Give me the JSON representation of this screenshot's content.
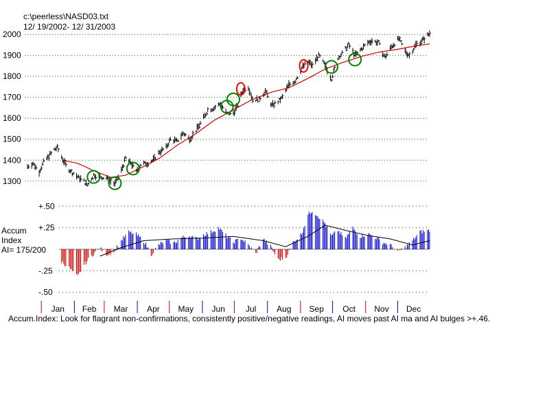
{
  "header": {
    "file_path": "c:\\peerless\\NASD03.txt",
    "date_range": " 12/ 19/2002- 12/ 31/2003"
  },
  "chart_data": [
    {
      "type": "bar",
      "subtype": "ohlc-price-with-moving-average",
      "title": "",
      "ylim": [
        1260,
        2020
      ],
      "y_ticks": [
        "2000",
        "1900",
        "1800",
        "1700",
        "1600",
        "1500",
        "1400",
        "1300"
      ],
      "y_tick_values": [
        2000,
        1900,
        1800,
        1700,
        1600,
        1500,
        1400,
        1300
      ],
      "grid": "horizontal dotted",
      "colors": {
        "bars": "#000000",
        "moving_average": "#cc0000",
        "buy_marker": "#008000",
        "sell_marker": "#ff0000"
      },
      "price_series": [
        {
          "date": "2002-12-19",
          "close": 1370
        },
        {
          "date": "2002-12-24",
          "close": 1385
        },
        {
          "date": "2002-12-30",
          "close": 1345
        },
        {
          "date": "2003-01-03",
          "close": 1390
        },
        {
          "date": "2003-01-08",
          "close": 1420
        },
        {
          "date": "2003-01-13",
          "close": 1450
        },
        {
          "date": "2003-01-16",
          "close": 1460
        },
        {
          "date": "2003-01-21",
          "close": 1405
        },
        {
          "date": "2003-01-24",
          "close": 1375
        },
        {
          "date": "2003-01-29",
          "close": 1345
        },
        {
          "date": "2003-02-04",
          "close": 1320
        },
        {
          "date": "2003-02-10",
          "close": 1300
        },
        {
          "date": "2003-02-13",
          "close": 1280
        },
        {
          "date": "2003-02-19",
          "close": 1330
        },
        {
          "date": "2003-02-25",
          "close": 1320
        },
        {
          "date": "2003-03-03",
          "close": 1315
        },
        {
          "date": "2003-03-07",
          "close": 1300
        },
        {
          "date": "2003-03-11",
          "close": 1285
        },
        {
          "date": "2003-03-17",
          "close": 1350
        },
        {
          "date": "2003-03-21",
          "close": 1410
        },
        {
          "date": "2003-03-26",
          "close": 1385
        },
        {
          "date": "2003-03-31",
          "close": 1345
        },
        {
          "date": "2003-04-04",
          "close": 1380
        },
        {
          "date": "2003-04-10",
          "close": 1385
        },
        {
          "date": "2003-04-16",
          "close": 1400
        },
        {
          "date": "2003-04-22",
          "close": 1440
        },
        {
          "date": "2003-04-28",
          "close": 1460
        },
        {
          "date": "2003-05-02",
          "close": 1500
        },
        {
          "date": "2003-05-08",
          "close": 1490
        },
        {
          "date": "2003-05-14",
          "close": 1530
        },
        {
          "date": "2003-05-20",
          "close": 1500
        },
        {
          "date": "2003-05-27",
          "close": 1550
        },
        {
          "date": "2003-06-02",
          "close": 1600
        },
        {
          "date": "2003-06-06",
          "close": 1640
        },
        {
          "date": "2003-06-12",
          "close": 1650
        },
        {
          "date": "2003-06-18",
          "close": 1670
        },
        {
          "date": "2003-06-24",
          "close": 1620
        },
        {
          "date": "2003-06-30",
          "close": 1625
        },
        {
          "date": "2003-07-03",
          "close": 1650
        },
        {
          "date": "2003-07-09",
          "close": 1735
        },
        {
          "date": "2003-07-14",
          "close": 1750
        },
        {
          "date": "2003-07-18",
          "close": 1690
        },
        {
          "date": "2003-07-24",
          "close": 1690
        },
        {
          "date": "2003-07-30",
          "close": 1730
        },
        {
          "date": "2003-08-05",
          "close": 1660
        },
        {
          "date": "2003-08-11",
          "close": 1680
        },
        {
          "date": "2003-08-15",
          "close": 1700
        },
        {
          "date": "2003-08-21",
          "close": 1760
        },
        {
          "date": "2003-08-27",
          "close": 1780
        },
        {
          "date": "2003-09-02",
          "close": 1840
        },
        {
          "date": "2003-09-08",
          "close": 1870
        },
        {
          "date": "2003-09-12",
          "close": 1850
        },
        {
          "date": "2003-09-18",
          "close": 1900
        },
        {
          "date": "2003-09-24",
          "close": 1850
        },
        {
          "date": "2003-09-30",
          "close": 1790
        },
        {
          "date": "2003-10-06",
          "close": 1890
        },
        {
          "date": "2003-10-10",
          "close": 1910
        },
        {
          "date": "2003-10-16",
          "close": 1950
        },
        {
          "date": "2003-10-22",
          "close": 1900
        },
        {
          "date": "2003-10-28",
          "close": 1930
        },
        {
          "date": "2003-11-03",
          "close": 1960
        },
        {
          "date": "2003-11-07",
          "close": 1970
        },
        {
          "date": "2003-11-13",
          "close": 1960
        },
        {
          "date": "2003-11-19",
          "close": 1890
        },
        {
          "date": "2003-11-25",
          "close": 1940
        },
        {
          "date": "2003-12-02",
          "close": 1980
        },
        {
          "date": "2003-12-08",
          "close": 1920
        },
        {
          "date": "2003-12-12",
          "close": 1900
        },
        {
          "date": "2003-12-18",
          "close": 1950
        },
        {
          "date": "2003-12-24",
          "close": 1970
        },
        {
          "date": "2003-12-31",
          "close": 2005
        }
      ],
      "moving_average_points": [
        {
          "date": "2003-01-21",
          "value": 1400
        },
        {
          "date": "2003-02-04",
          "value": 1385
        },
        {
          "date": "2003-02-19",
          "value": 1350
        },
        {
          "date": "2003-03-07",
          "value": 1318
        },
        {
          "date": "2003-03-21",
          "value": 1328
        },
        {
          "date": "2003-04-04",
          "value": 1362
        },
        {
          "date": "2003-04-22",
          "value": 1410
        },
        {
          "date": "2003-05-08",
          "value": 1470
        },
        {
          "date": "2003-05-27",
          "value": 1530
        },
        {
          "date": "2003-06-12",
          "value": 1590
        },
        {
          "date": "2003-06-30",
          "value": 1640
        },
        {
          "date": "2003-07-18",
          "value": 1690
        },
        {
          "date": "2003-08-05",
          "value": 1725
        },
        {
          "date": "2003-08-21",
          "value": 1745
        },
        {
          "date": "2003-09-08",
          "value": 1790
        },
        {
          "date": "2003-09-24",
          "value": 1835
        },
        {
          "date": "2003-10-10",
          "value": 1865
        },
        {
          "date": "2003-10-28",
          "value": 1895
        },
        {
          "date": "2003-11-13",
          "value": 1915
        },
        {
          "date": "2003-12-02",
          "value": 1930
        },
        {
          "date": "2003-12-18",
          "value": 1945
        },
        {
          "date": "2003-12-31",
          "value": 1955
        }
      ],
      "signal_markers": [
        {
          "date": "2003-02-19",
          "price": 1320,
          "kind": "buy"
        },
        {
          "date": "2003-03-11",
          "price": 1290,
          "kind": "buy"
        },
        {
          "date": "2003-03-28",
          "price": 1360,
          "kind": "buy"
        },
        {
          "date": "2003-06-24",
          "price": 1655,
          "kind": "buy"
        },
        {
          "date": "2003-06-30",
          "price": 1690,
          "kind": "buy"
        },
        {
          "date": "2003-07-07",
          "price": 1740,
          "kind": "sell"
        },
        {
          "date": "2003-09-04",
          "price": 1850,
          "kind": "sell"
        },
        {
          "date": "2003-09-30",
          "price": 1845,
          "kind": "buy"
        },
        {
          "date": "2003-10-22",
          "price": 1880,
          "kind": "buy"
        }
      ]
    },
    {
      "type": "bar",
      "subtype": "indicator-histogram",
      "title": "",
      "ylabel_lines": [
        "Accum",
        "Index",
        "AI= 175/200"
      ],
      "ylim": [
        -0.55,
        0.55
      ],
      "y_ticks": [
        "+.50",
        "+.25",
        "-.25",
        "-.50"
      ],
      "y_tick_values": [
        0.5,
        0.25,
        -0.25,
        -0.5
      ],
      "grid": "horizontal dotted",
      "colors": {
        "positive": "#0000cc",
        "negative": "#cc0000",
        "ai_ma": "#000000"
      },
      "ai_series": [
        {
          "date": "2002-12-19",
          "value": -0.05
        },
        {
          "date": "2002-12-30",
          "value": -0.12
        },
        {
          "date": "2003-01-10",
          "value": -0.1
        },
        {
          "date": "2003-01-21",
          "value": -0.15
        },
        {
          "date": "2003-01-28",
          "value": -0.23
        },
        {
          "date": "2003-02-04",
          "value": -0.32
        },
        {
          "date": "2003-02-10",
          "value": -0.18
        },
        {
          "date": "2003-02-19",
          "value": -0.05
        },
        {
          "date": "2003-02-25",
          "value": 0.01
        },
        {
          "date": "2003-03-03",
          "value": -0.06
        },
        {
          "date": "2003-03-10",
          "value": -0.03
        },
        {
          "date": "2003-03-17",
          "value": 0.1
        },
        {
          "date": "2003-03-24",
          "value": 0.2
        },
        {
          "date": "2003-03-31",
          "value": 0.17
        },
        {
          "date": "2003-04-07",
          "value": 0.1
        },
        {
          "date": "2003-04-14",
          "value": -0.06
        },
        {
          "date": "2003-04-21",
          "value": 0.05
        },
        {
          "date": "2003-04-28",
          "value": 0.1
        },
        {
          "date": "2003-05-05",
          "value": 0.07
        },
        {
          "date": "2003-05-12",
          "value": 0.13
        },
        {
          "date": "2003-05-19",
          "value": 0.16
        },
        {
          "date": "2003-05-27",
          "value": 0.12
        },
        {
          "date": "2003-06-02",
          "value": 0.17
        },
        {
          "date": "2003-06-09",
          "value": 0.2
        },
        {
          "date": "2003-06-16",
          "value": 0.25
        },
        {
          "date": "2003-06-23",
          "value": 0.16
        },
        {
          "date": "2003-06-30",
          "value": 0.08
        },
        {
          "date": "2003-07-07",
          "value": 0.13
        },
        {
          "date": "2003-07-14",
          "value": 0.05
        },
        {
          "date": "2003-07-21",
          "value": -0.05
        },
        {
          "date": "2003-07-28",
          "value": 0.12
        },
        {
          "date": "2003-08-04",
          "value": 0.03
        },
        {
          "date": "2003-08-11",
          "value": -0.12
        },
        {
          "date": "2003-08-18",
          "value": -0.1
        },
        {
          "date": "2003-08-25",
          "value": 0.08
        },
        {
          "date": "2003-09-02",
          "value": 0.18
        },
        {
          "date": "2003-09-08",
          "value": 0.4
        },
        {
          "date": "2003-09-12",
          "value": 0.45
        },
        {
          "date": "2003-09-18",
          "value": 0.38
        },
        {
          "date": "2003-09-24",
          "value": 0.3
        },
        {
          "date": "2003-09-30",
          "value": 0.15
        },
        {
          "date": "2003-10-06",
          "value": 0.22
        },
        {
          "date": "2003-10-13",
          "value": 0.12
        },
        {
          "date": "2003-10-20",
          "value": 0.25
        },
        {
          "date": "2003-10-27",
          "value": 0.15
        },
        {
          "date": "2003-11-03",
          "value": 0.18
        },
        {
          "date": "2003-11-10",
          "value": 0.14
        },
        {
          "date": "2003-11-17",
          "value": 0.08
        },
        {
          "date": "2003-11-24",
          "value": 0.05
        },
        {
          "date": "2003-12-01",
          "value": -0.03
        },
        {
          "date": "2003-12-08",
          "value": 0.02
        },
        {
          "date": "2003-12-15",
          "value": 0.1
        },
        {
          "date": "2003-12-22",
          "value": 0.2
        },
        {
          "date": "2003-12-31",
          "value": 0.22
        }
      ],
      "ai_ma_points": [
        {
          "date": "2003-02-25",
          "value": -0.08
        },
        {
          "date": "2003-03-17",
          "value": 0.02
        },
        {
          "date": "2003-04-07",
          "value": 0.1
        },
        {
          "date": "2003-05-05",
          "value": 0.12
        },
        {
          "date": "2003-06-02",
          "value": 0.13
        },
        {
          "date": "2003-06-30",
          "value": 0.15
        },
        {
          "date": "2003-07-28",
          "value": 0.1
        },
        {
          "date": "2003-08-18",
          "value": 0.03
        },
        {
          "date": "2003-09-08",
          "value": 0.15
        },
        {
          "date": "2003-09-24",
          "value": 0.28
        },
        {
          "date": "2003-10-13",
          "value": 0.22
        },
        {
          "date": "2003-11-03",
          "value": 0.16
        },
        {
          "date": "2003-11-24",
          "value": 0.12
        },
        {
          "date": "2003-12-15",
          "value": 0.05
        },
        {
          "date": "2003-12-31",
          "value": 0.1
        }
      ]
    }
  ],
  "x_axis": {
    "range": [
      "2002-12-19",
      "2003-12-31"
    ],
    "months": [
      {
        "label": "Jan",
        "start": "2003-01-01"
      },
      {
        "label": "Feb",
        "start": "2003-02-01"
      },
      {
        "label": "Mar",
        "start": "2003-03-01"
      },
      {
        "label": "Apr",
        "start": "2003-04-01"
      },
      {
        "label": "May",
        "start": "2003-05-01"
      },
      {
        "label": "Jun",
        "start": "2003-06-01"
      },
      {
        "label": "Jul",
        "start": "2003-07-01"
      },
      {
        "label": "Aug",
        "start": "2003-08-01"
      },
      {
        "label": "Sep",
        "start": "2003-09-01"
      },
      {
        "label": "Oct",
        "start": "2003-10-01"
      },
      {
        "label": "Nov",
        "start": "2003-11-01"
      },
      {
        "label": "Dec",
        "start": "2003-12-01"
      }
    ],
    "colors": {
      "month_tick_odd": "#cc0000",
      "month_tick_even": "#0000cc"
    }
  },
  "footer": {
    "note": "Accum.Index: Look for flagrant non-confirmations, consistently positive/negative readings, AI moves past AI ma and AI bulges >+.46."
  }
}
